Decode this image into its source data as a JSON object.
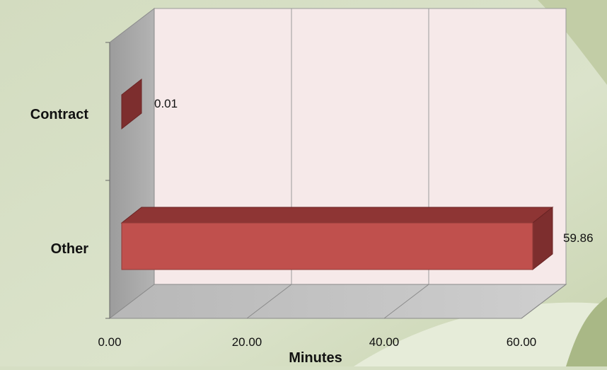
{
  "chart_data": {
    "type": "bar",
    "orientation": "horizontal",
    "three_d": true,
    "categories": [
      "Contract",
      "Other"
    ],
    "values": [
      0.01,
      59.86
    ],
    "data_labels": [
      "0.01",
      "59.86"
    ],
    "xlabel": "Minutes",
    "ylabel": "",
    "xlim": [
      0,
      60
    ],
    "xticks": [
      "0.00",
      "20.00",
      "40.00",
      "60.00"
    ],
    "grid": true,
    "legend": "none",
    "colors": {
      "bar_front": "#c0504d",
      "bar_top": "#8e3534",
      "bar_side": "#7d2e2e",
      "back_wall": "#f5e8e8",
      "side_wall": "#a6a6a6",
      "floor": "#bfbfbf",
      "background": "#d6dfc4"
    }
  }
}
